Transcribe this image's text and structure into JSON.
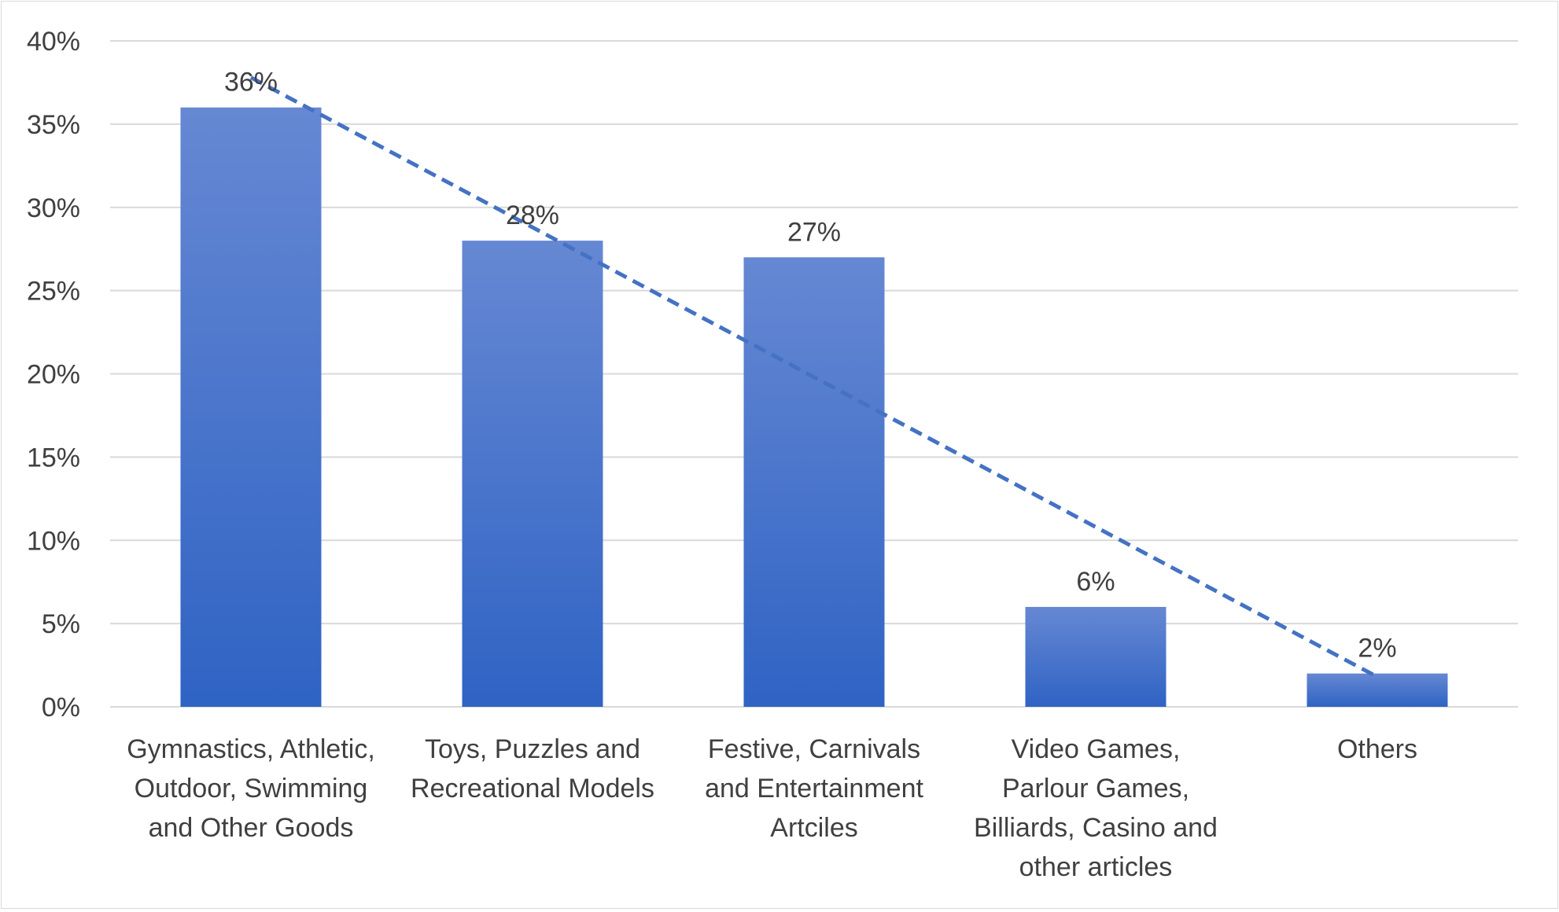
{
  "chart_data": {
    "type": "bar",
    "categories": [
      [
        "Gymnastics, Athletic,",
        "Outdoor, Swimming",
        "and Other Goods"
      ],
      [
        "Toys, Puzzles and",
        "Recreational Models"
      ],
      [
        "Festive, Carnivals",
        "and Entertainment",
        "Artciles"
      ],
      [
        "Video Games,",
        "Parlour Games,",
        "Billiards, Casino and",
        "other articles"
      ],
      [
        "Others"
      ]
    ],
    "values": [
      36,
      28,
      27,
      6,
      2
    ],
    "data_labels": [
      "36%",
      "28%",
      "27%",
      "6%",
      "2%"
    ],
    "y_ticks": [
      {
        "value": 0,
        "label": "0%"
      },
      {
        "value": 5,
        "label": "5%"
      },
      {
        "value": 10,
        "label": "10%"
      },
      {
        "value": 15,
        "label": "15%"
      },
      {
        "value": 20,
        "label": "20%"
      },
      {
        "value": 25,
        "label": "25%"
      },
      {
        "value": 30,
        "label": "30%"
      },
      {
        "value": 35,
        "label": "35%"
      },
      {
        "value": 40,
        "label": "40%"
      }
    ],
    "ylim": [
      0,
      40
    ],
    "grid": true,
    "legend": "none",
    "trendline": {
      "type": "linear",
      "style": "dashed",
      "color": "#4472c4",
      "start": 37.8,
      "end": 1.8
    },
    "colors": {
      "bar_top": "#6688d3",
      "bar_bottom": "#2f63c4",
      "grid": "#d9d9d9",
      "text": "#404040"
    }
  }
}
